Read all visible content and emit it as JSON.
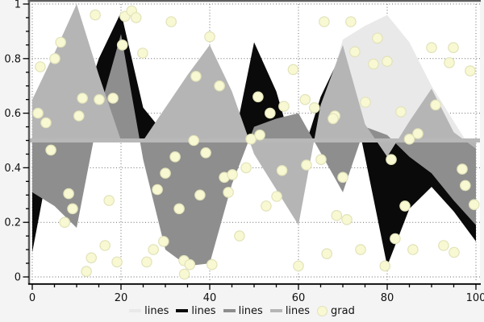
{
  "chart_data": {
    "type": "area",
    "title": "",
    "xlabel": "",
    "ylabel": "",
    "baseline": 0.5,
    "baseline_band_color": "#b8b8b8",
    "x": [
      0,
      5,
      10,
      15,
      20,
      25,
      30,
      35,
      40,
      45,
      50,
      55,
      60,
      65,
      70,
      75,
      80,
      85,
      90,
      95,
      100
    ],
    "series": [
      {
        "name": "lines",
        "color": "#e9e9e9",
        "values": [
          0.5,
          0.5,
          0.5,
          0.5,
          0.5,
          0.5,
          0.5,
          0.5,
          0.5,
          0.5,
          0.5,
          0.5,
          0.5,
          0.58,
          0.87,
          0.92,
          0.96,
          0.86,
          0.7,
          0.57,
          0.44
        ]
      },
      {
        "name": "lines",
        "color": "#0a0a0a",
        "values": [
          0.09,
          0.52,
          0.55,
          0.8,
          0.97,
          0.62,
          0.52,
          0.5,
          0.5,
          0.46,
          0.86,
          0.68,
          0.4,
          0.66,
          0.83,
          0.44,
          0.04,
          0.25,
          0.33,
          0.24,
          0.13
        ]
      },
      {
        "name": "lines",
        "color": "#8e8e8e",
        "values": [
          0.31,
          0.26,
          0.18,
          0.6,
          0.89,
          0.43,
          0.1,
          0.04,
          0.05,
          0.34,
          0.55,
          0.58,
          0.6,
          0.455,
          0.31,
          0.55,
          0.52,
          0.44,
          0.38,
          0.28,
          0.19
        ]
      },
      {
        "name": "lines",
        "color": "#b5b5b5",
        "values": [
          0.65,
          0.82,
          1.0,
          0.74,
          0.5,
          0.5,
          0.62,
          0.74,
          0.85,
          0.68,
          0.45,
          0.32,
          0.19,
          0.63,
          0.85,
          0.56,
          0.44,
          0.57,
          0.69,
          0.53,
          0.47
        ]
      }
    ],
    "scatter": {
      "name": "grad",
      "marker": "circle",
      "fill": "#f8f8d2",
      "edge": "#e2e2ba",
      "points": [
        [
          14.2,
          0.96
        ],
        [
          20.9,
          0.955
        ],
        [
          22.4,
          0.975
        ],
        [
          23.4,
          0.95
        ],
        [
          31.3,
          0.935
        ],
        [
          40,
          0.88
        ],
        [
          65.8,
          0.935
        ],
        [
          71.8,
          0.935
        ],
        [
          6.4,
          0.86
        ],
        [
          20.3,
          0.85
        ],
        [
          24.9,
          0.82
        ],
        [
          5.1,
          0.8
        ],
        [
          1.8,
          0.77
        ],
        [
          77.8,
          0.875
        ],
        [
          80,
          0.79
        ],
        [
          72.7,
          0.825
        ],
        [
          76.9,
          0.78
        ],
        [
          90,
          0.84
        ],
        [
          94.9,
          0.84
        ],
        [
          94,
          0.785
        ],
        [
          98.7,
          0.755
        ],
        [
          36.9,
          0.735
        ],
        [
          42.2,
          0.7
        ],
        [
          58.8,
          0.76
        ],
        [
          11.3,
          0.655
        ],
        [
          15.1,
          0.65
        ],
        [
          18.2,
          0.655
        ],
        [
          1.3,
          0.6
        ],
        [
          3.1,
          0.565
        ],
        [
          10.5,
          0.59
        ],
        [
          50.9,
          0.66
        ],
        [
          56.7,
          0.625
        ],
        [
          53.6,
          0.6
        ],
        [
          61.5,
          0.65
        ],
        [
          63.6,
          0.62
        ],
        [
          68.2,
          0.59
        ],
        [
          67.8,
          0.58
        ],
        [
          75.1,
          0.64
        ],
        [
          83.1,
          0.605
        ],
        [
          90.9,
          0.63
        ],
        [
          86.9,
          0.525
        ],
        [
          85,
          0.505
        ],
        [
          36.4,
          0.5
        ],
        [
          49.3,
          0.505
        ],
        [
          51.3,
          0.52
        ],
        [
          4.2,
          0.465
        ],
        [
          32.2,
          0.44
        ],
        [
          39.1,
          0.455
        ],
        [
          43.3,
          0.365
        ],
        [
          45.1,
          0.375
        ],
        [
          48.2,
          0.4
        ],
        [
          56.3,
          0.39
        ],
        [
          61.8,
          0.41
        ],
        [
          65.1,
          0.43
        ],
        [
          80.9,
          0.43
        ],
        [
          96.9,
          0.395
        ],
        [
          97.6,
          0.335
        ],
        [
          30,
          0.38
        ],
        [
          28.2,
          0.32
        ],
        [
          37.8,
          0.3
        ],
        [
          44.2,
          0.31
        ],
        [
          55.1,
          0.295
        ],
        [
          52.7,
          0.26
        ],
        [
          33.1,
          0.25
        ],
        [
          84,
          0.26
        ],
        [
          99.6,
          0.265
        ],
        [
          8.2,
          0.305
        ],
        [
          9.1,
          0.25
        ],
        [
          17.3,
          0.28
        ],
        [
          7.3,
          0.2
        ],
        [
          68.6,
          0.225
        ],
        [
          70.9,
          0.21
        ],
        [
          70,
          0.365
        ],
        [
          16.4,
          0.115
        ],
        [
          13.3,
          0.07
        ],
        [
          19.1,
          0.055
        ],
        [
          12.2,
          0.02
        ],
        [
          29.6,
          0.13
        ],
        [
          27.3,
          0.1
        ],
        [
          25.8,
          0.055
        ],
        [
          34.2,
          0.06
        ],
        [
          35.5,
          0.045
        ],
        [
          40.5,
          0.045
        ],
        [
          46.7,
          0.15
        ],
        [
          60,
          0.04
        ],
        [
          66.4,
          0.085
        ],
        [
          34.3,
          0.01
        ],
        [
          81.8,
          0.14
        ],
        [
          74,
          0.1
        ],
        [
          85.8,
          0.1
        ],
        [
          92.7,
          0.115
        ],
        [
          95.1,
          0.09
        ],
        [
          79.5,
          0.04
        ]
      ]
    },
    "axes": {
      "xlim": [
        0,
        100
      ],
      "ylim": [
        0,
        1
      ],
      "xticks": [
        0,
        20,
        40,
        60,
        80,
        100
      ],
      "yticks": [
        0,
        0.2,
        0.4,
        0.6,
        0.8,
        1
      ],
      "xtick_labels": [
        "0",
        "20",
        "40",
        "60",
        "80",
        "100"
      ],
      "ytick_labels": [
        "0",
        "0.2",
        "0.4",
        "0.6",
        "0.8",
        "1"
      ],
      "minor_x_step": 5,
      "minor_y_step": 0.05,
      "grid": "dotted"
    },
    "legend_position": "bottom-center"
  },
  "colors": {
    "page_bg": "#f4f4f4",
    "plot_bg": "#ffffff",
    "border": "#5e5e5e",
    "axis_line": "#000000",
    "grid": "#6a6a6a",
    "tick": "#000000",
    "tick_label": "#111111",
    "legend_text": "#111111"
  }
}
